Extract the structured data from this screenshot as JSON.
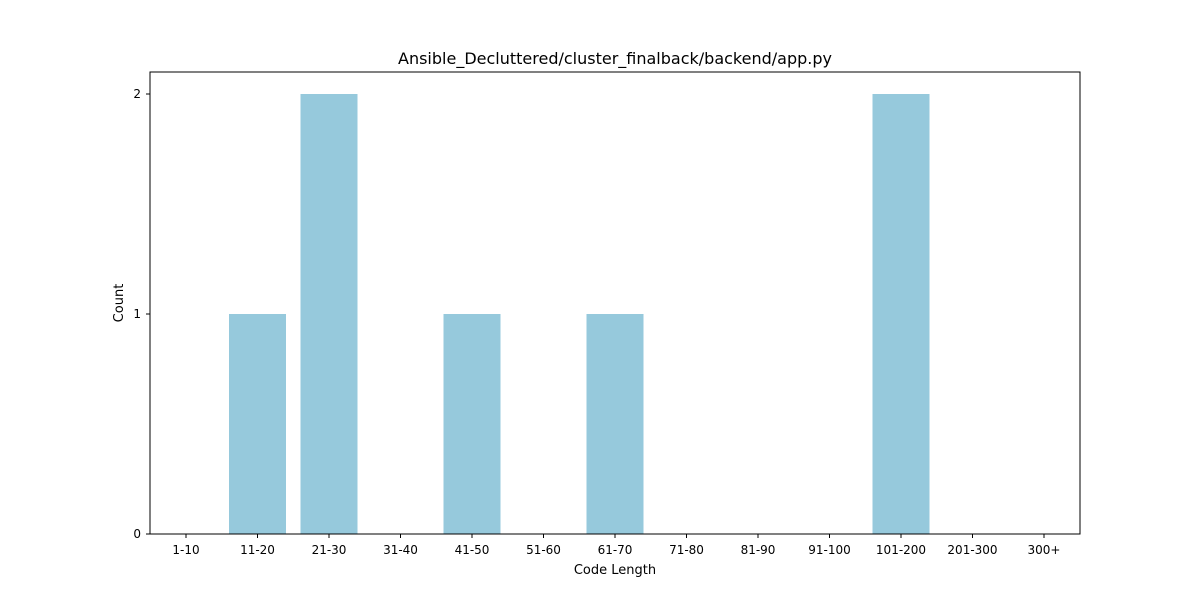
{
  "chart_data": {
    "type": "bar",
    "title": "Ansible_Decluttered/cluster_finalback/backend/app.py",
    "xlabel": "Code Length",
    "ylabel": "Count",
    "categories": [
      "1-10",
      "11-20",
      "21-30",
      "31-40",
      "41-50",
      "51-60",
      "61-70",
      "71-80",
      "81-90",
      "91-100",
      "101-200",
      "201-300",
      "300+"
    ],
    "values": [
      0,
      1,
      2,
      0,
      1,
      0,
      1,
      0,
      0,
      0,
      2,
      0,
      0
    ],
    "yticks": [
      0,
      1,
      2
    ],
    "ylim": [
      0,
      2.1
    ],
    "grid": false,
    "legend": "none",
    "bar_color": "#96c9dc"
  }
}
